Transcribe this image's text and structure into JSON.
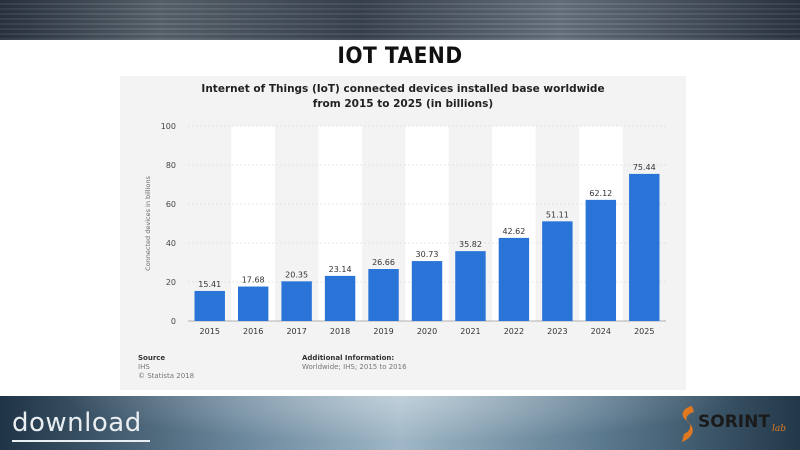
{
  "slide": {
    "title": "IOT TAEND"
  },
  "chart_data": {
    "type": "bar",
    "title_lines": [
      "Internet of Things (IoT) connected devices installed base worldwide",
      "from 2015 to 2025 (in billions)"
    ],
    "categories": [
      "2015",
      "2016",
      "2017",
      "2018",
      "2019",
      "2020",
      "2021",
      "2022",
      "2023",
      "2024",
      "2025"
    ],
    "values": [
      15.41,
      17.68,
      20.35,
      23.14,
      26.66,
      30.73,
      35.82,
      42.62,
      51.11,
      62.12,
      75.44
    ],
    "data_labels": [
      "15.41",
      "17.68",
      "20.35",
      "23.14",
      "26.66",
      "30.73",
      "35.82",
      "42.62",
      "51.11",
      "62.12",
      "75.44"
    ],
    "ylabel": "Connected devices in billions",
    "xlabel": "",
    "ylim": [
      0,
      100
    ],
    "yticks": [
      0,
      20,
      40,
      60,
      80,
      100
    ],
    "grid": true,
    "bar_color": "#2a74d8"
  },
  "footer": {
    "source_label": "Source",
    "source_lines": [
      "IHS",
      "© Statista 2018"
    ],
    "additional_label": "Additional Information:",
    "additional_text": "Worldwide; IHS; 2015 to 2016"
  },
  "branding": {
    "download_text": "download",
    "sorint_text": "SORINT",
    "sorint_lab": "lab",
    "sorint_color": "#e07820"
  }
}
